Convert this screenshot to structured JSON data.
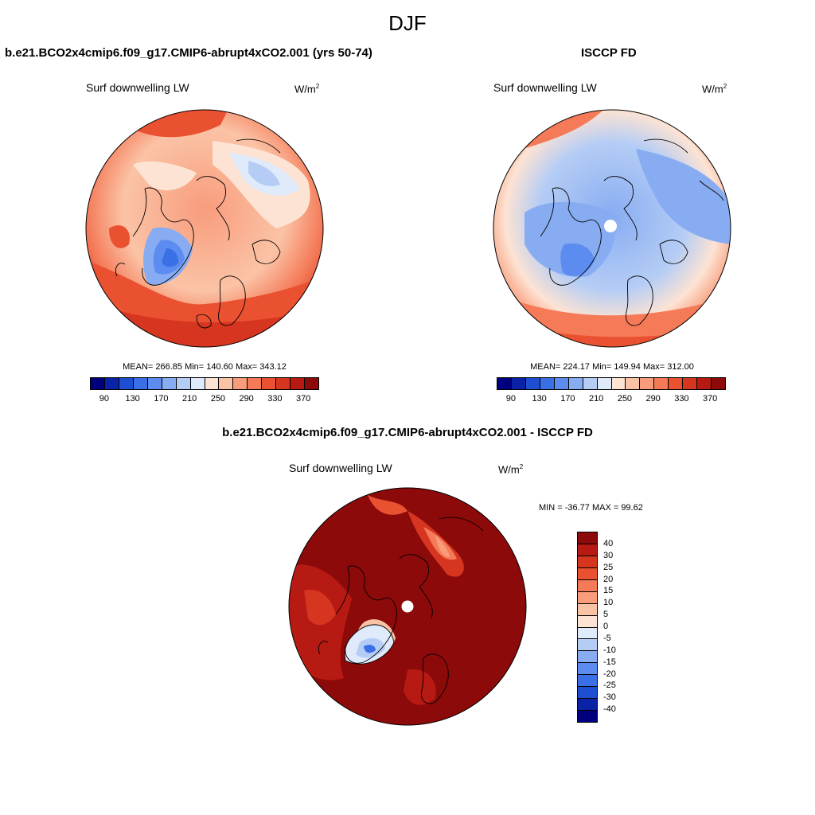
{
  "figure": {
    "season": "DJF",
    "panel_top_left_title": "b.e21.BCO2x4cmip6.f09_g17.CMIP6-abrupt4xCO2.001 (yrs 50-74)",
    "panel_top_right_title": "ISCCP FD",
    "panel_bottom_title": "b.e21.BCO2x4cmip6.f09_g17.CMIP6-abrupt4xCO2.001 - ISCCP FD"
  },
  "colors": {
    "abs_scale": [
      "#00007f",
      "#0a23a6",
      "#1e4fd2",
      "#3b6fe6",
      "#5c8cf0",
      "#88acf2",
      "#b5cdf5",
      "#dfeafb",
      "#fde3d3",
      "#fbc3a6",
      "#f89c7c",
      "#f47a58",
      "#ea5131",
      "#d63520",
      "#b71a12",
      "#8c0a0a"
    ],
    "diff_scale": [
      "#8c0a0a",
      "#b71a12",
      "#d63520",
      "#ea5131",
      "#f47a58",
      "#f89c7c",
      "#fbc3a6",
      "#fde3d3",
      "#dfeafb",
      "#b5cdf5",
      "#88acf2",
      "#5c8cf0",
      "#3b6fe6",
      "#1e4fd2",
      "#0a23a6",
      "#00007f"
    ]
  },
  "chart_data": [
    {
      "type": "heatmap",
      "title": "b.e21.BCO2x4cmip6.f09_g17.CMIP6-abrupt4xCO2.001 (yrs 50-74)",
      "variable": "Surf downwelling LW",
      "units": "W/m2",
      "stats_text": "MEAN= 266.85  Min= 140.60  Max= 343.12",
      "mean": 266.85,
      "min": 140.6,
      "max": 343.12,
      "colorbar_ticks": [
        "90",
        "130",
        "170",
        "210",
        "250",
        "290",
        "330",
        "370"
      ],
      "projection": "north polar stereographic"
    },
    {
      "type": "heatmap",
      "title": "ISCCP FD",
      "variable": "Surf downwelling LW",
      "units": "W/m2",
      "stats_text": "MEAN= 224.17  Min= 149.94  Max= 312.00",
      "mean": 224.17,
      "min": 149.94,
      "max": 312.0,
      "colorbar_ticks": [
        "90",
        "130",
        "170",
        "210",
        "250",
        "290",
        "330",
        "370"
      ],
      "projection": "north polar stereographic"
    },
    {
      "type": "heatmap",
      "title": "b.e21.BCO2x4cmip6.f09_g17.CMIP6-abrupt4xCO2.001 - ISCCP FD",
      "variable": "Surf downwelling LW",
      "units": "W/m2",
      "stats_text": "MIN = -36.77 MAX =  99.62",
      "min": -36.77,
      "max": 99.62,
      "colorbar_ticks": [
        "40",
        "30",
        "25",
        "20",
        "15",
        "10",
        "5",
        "0",
        "-5",
        "-10",
        "-15",
        "-20",
        "-25",
        "-30",
        "-40"
      ],
      "projection": "north polar stereographic"
    }
  ]
}
